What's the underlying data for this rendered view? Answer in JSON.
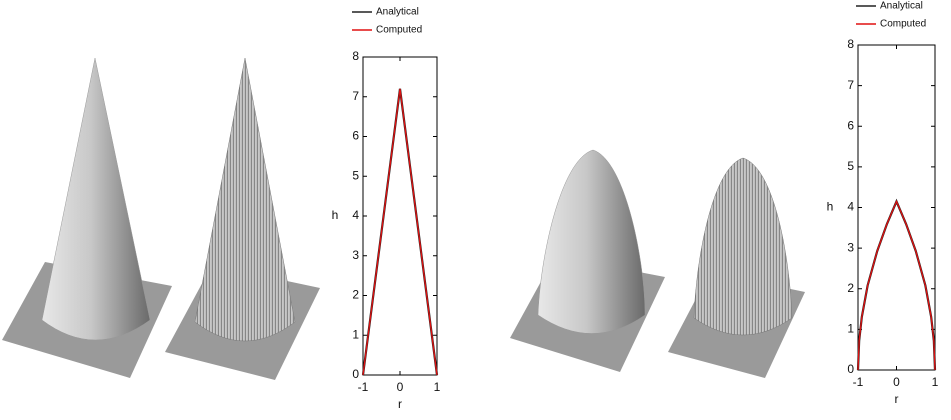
{
  "chart_data": [
    {
      "type": "line",
      "x_label": "r",
      "y_label": "h",
      "x": [
        -1,
        -0.5,
        0,
        0.5,
        1
      ],
      "series": [
        {
          "name": "Analytical",
          "color": "#222222",
          "values": [
            0,
            3.6,
            7.2,
            3.6,
            0
          ]
        },
        {
          "name": "Computed",
          "color": "#e01010",
          "values": [
            0,
            3.6,
            7.2,
            3.6,
            0
          ]
        }
      ],
      "xlim": [
        -1,
        1
      ],
      "xticks": [
        -1,
        0,
        1
      ],
      "ylim": [
        0,
        8
      ],
      "yticks": [
        0,
        1,
        2,
        3,
        4,
        5,
        6,
        7,
        8
      ]
    },
    {
      "type": "line",
      "x_label": "r",
      "y_label": "h",
      "x": [
        -1,
        -0.97,
        -0.9,
        -0.75,
        -0.5,
        -0.25,
        0,
        0.25,
        0.5,
        0.75,
        0.9,
        0.97,
        1
      ],
      "series": [
        {
          "name": "Analytical",
          "color": "#222222",
          "values": [
            0,
            0.72,
            1.31,
            2.08,
            2.93,
            3.59,
            4.15,
            3.59,
            2.93,
            2.08,
            1.31,
            0.72,
            0
          ]
        },
        {
          "name": "Computed",
          "color": "#e01010",
          "values": [
            0,
            0.72,
            1.31,
            2.08,
            2.93,
            3.59,
            4.15,
            3.59,
            2.93,
            2.08,
            1.31,
            0.72,
            0
          ]
        }
      ],
      "xlim": [
        -1,
        1
      ],
      "xticks": [
        -1,
        0,
        1
      ],
      "ylim": [
        0,
        8
      ],
      "yticks": [
        0,
        1,
        2,
        3,
        4,
        5,
        6,
        7,
        8
      ]
    }
  ]
}
